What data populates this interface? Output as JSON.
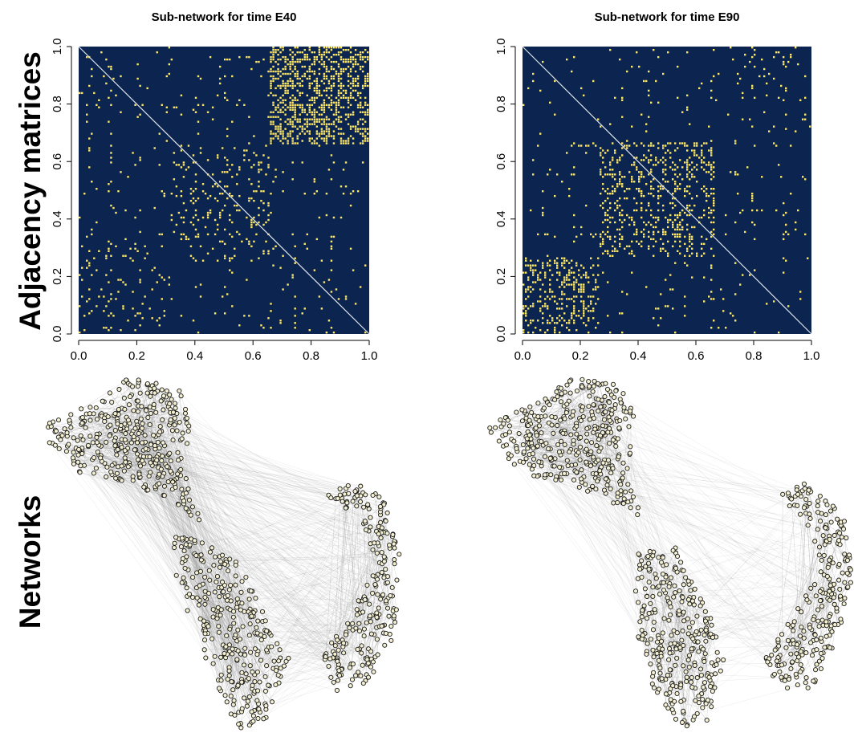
{
  "row_labels": {
    "top": "Adjacency matrices",
    "bottom": "Networks"
  },
  "colors": {
    "background": "#0b2550",
    "edge": "#ffe766",
    "diagonal": "#dfe4ea",
    "net_edge": "#8a8a8a",
    "node_fill": "#f3efd2",
    "node_stroke": "#1a1a1a"
  },
  "chart_data": [
    {
      "type": "heatmap",
      "title": "Sub-network for time E40",
      "xlim": [
        0,
        1
      ],
      "ylim": [
        0,
        1
      ],
      "x_ticks": [
        "0.0",
        "0.2",
        "0.4",
        "0.6",
        "0.8",
        "1.0"
      ],
      "y_ticks": [
        "0.0",
        "0.2",
        "0.4",
        "0.6",
        "0.8",
        "1.0"
      ],
      "blocks": [
        {
          "from": 0.66,
          "to": 1.0,
          "density": 0.4
        },
        {
          "from": 0.32,
          "to": 0.66,
          "density": 0.1
        },
        {
          "from": 0.0,
          "to": 0.32,
          "density": 0.05
        }
      ],
      "bands": [
        0.96,
        0.89,
        0.79,
        0.59,
        0.49,
        0.41,
        0.34,
        0.3,
        0.26,
        0.13
      ]
    },
    {
      "type": "heatmap",
      "title": "Sub-network for time E90",
      "xlim": [
        0,
        1
      ],
      "ylim": [
        0,
        1
      ],
      "x_ticks": [
        "0.0",
        "0.2",
        "0.4",
        "0.6",
        "0.8",
        "1.0"
      ],
      "y_ticks": [
        "0.0",
        "0.2",
        "0.4",
        "0.6",
        "0.8",
        "1.0"
      ],
      "blocks": [
        {
          "from": 0.67,
          "to": 1.0,
          "density": 0.03
        },
        {
          "from": 0.27,
          "to": 0.67,
          "density": 0.2
        },
        {
          "from": 0.0,
          "to": 0.27,
          "density": 0.26
        }
      ],
      "bands": [
        0.93,
        0.88,
        0.82,
        0.66,
        0.56,
        0.43,
        0.34,
        0.2,
        0.09
      ]
    }
  ]
}
